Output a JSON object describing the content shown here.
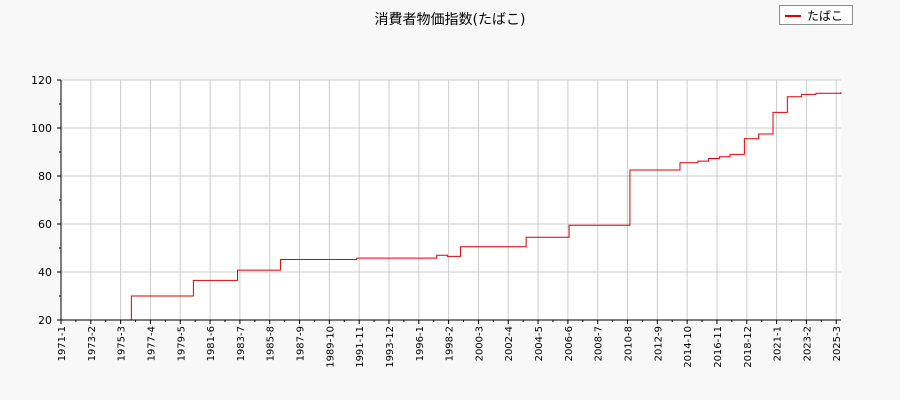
{
  "chart_data": {
    "type": "line",
    "title": "消費者物価指数(たばこ)",
    "xlabel": "",
    "ylabel": "",
    "legend_position": "top-right",
    "grid": true,
    "ylim": [
      20,
      120
    ],
    "yticks": [
      20,
      40,
      60,
      80,
      100,
      120
    ],
    "xlim": [
      "1971-01",
      "2025-07"
    ],
    "xtick_labels": [
      "1971-1",
      "1973-2",
      "1975-3",
      "1977-4",
      "1979-5",
      "1981-6",
      "1983-7",
      "1985-8",
      "1987-9",
      "1989-10",
      "1991-11",
      "1993-12",
      "1996-1",
      "1998-2",
      "2000-3",
      "2002-4",
      "2004-5",
      "2006-6",
      "2008-7",
      "2010-8",
      "2012-9",
      "2014-10",
      "2016-11",
      "2018-12",
      "2021-1",
      "2023-2",
      "2025-3"
    ],
    "colors": {
      "series": "#e00000",
      "grid": "#cccccc",
      "axis": "#000000",
      "background": "#f8f8f8",
      "plot_background": "#ffffff"
    },
    "series": [
      {
        "name": "たばこ",
        "step": true,
        "x": [
          "1971-01",
          "1975-12",
          "1980-04",
          "1983-05",
          "1986-05",
          "1991-09",
          "1997-04",
          "1998-01",
          "1998-12",
          "2003-07",
          "2006-07",
          "2010-10",
          "2014-04",
          "2015-07",
          "2016-04",
          "2017-01",
          "2017-10",
          "2018-10",
          "2019-10",
          "2020-10",
          "2021-10",
          "2022-10",
          "2023-10",
          "2025-07"
        ],
        "values": [
          20.0,
          30.0,
          36.5,
          40.8,
          45.2,
          45.8,
          47.0,
          46.5,
          50.5,
          54.5,
          59.5,
          82.5,
          85.5,
          86.2,
          87.3,
          88.0,
          89.0,
          95.5,
          97.5,
          106.5,
          113.0,
          114.0,
          114.5,
          115.0
        ]
      }
    ]
  }
}
